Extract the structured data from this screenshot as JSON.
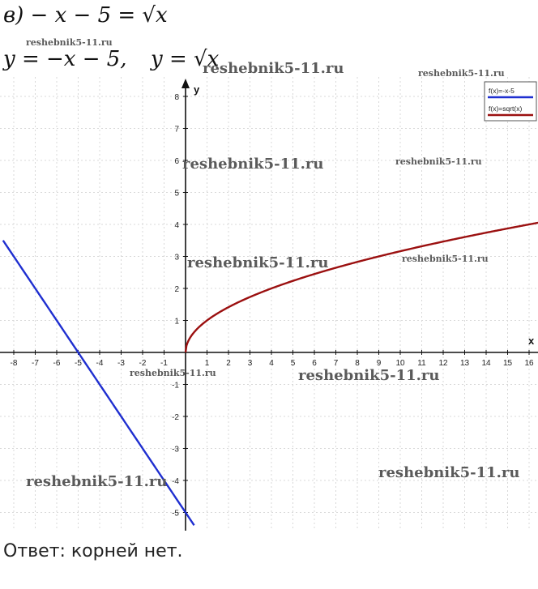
{
  "problem": {
    "equation": "в) − x − 5 = √x",
    "functions_line": "y = −x − 5,",
    "functions_line_b": "y = √x"
  },
  "answer": "Ответ: корней нет.",
  "watermarks": [
    "reshebnik5-11.ru",
    "reshebnik5-11.ru",
    "reshebnik5-11.ru",
    "reshebnik5-11.ru",
    "reshebnik5-11.ru",
    "reshebnik5-11.ru",
    "reshebnik5-11.ru",
    "reshebnik5-11.ru",
    "reshebnik5-11.ru",
    "reshebnik5-11.ru"
  ],
  "chart_data": {
    "type": "line",
    "xlabel": "x",
    "ylabel": "y",
    "xlim": [
      -8.5,
      16.8
    ],
    "ylim": [
      -5.4,
      8.6
    ],
    "x_ticks": [
      -8,
      -7,
      -6,
      -5,
      -4,
      -3,
      -2,
      -1,
      1,
      2,
      3,
      4,
      5,
      6,
      7,
      8,
      9,
      10,
      11,
      12,
      13,
      14,
      15,
      16
    ],
    "y_ticks": [
      -5,
      -4,
      -3,
      -2,
      -1,
      1,
      2,
      3,
      4,
      5,
      6,
      7,
      8
    ],
    "grid": true,
    "legend_position": "top-right",
    "series": [
      {
        "name": "f(x)=-x-5",
        "color": "#1f2fd0",
        "formula": "-x-5",
        "x_range": [
          -8.5,
          0.4
        ]
      },
      {
        "name": "f(x)=sqrt(x)",
        "color": "#9b1010",
        "formula": "sqrt(x)",
        "x_range": [
          0,
          16.8
        ]
      }
    ]
  }
}
